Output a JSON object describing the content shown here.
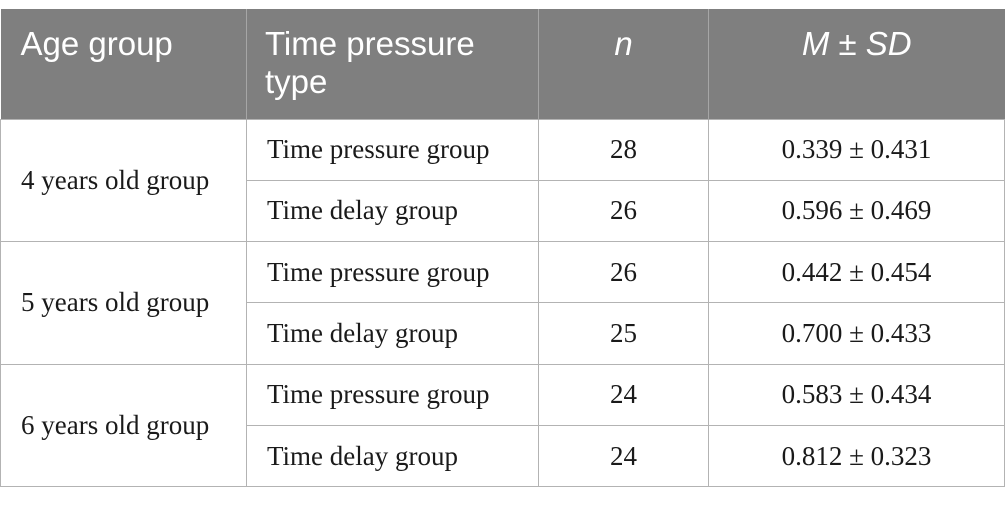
{
  "table": {
    "headers": [
      "Age group",
      "Time pressure type",
      "n",
      "M ± SD"
    ],
    "groups": [
      {
        "age_group": "4 years old group",
        "rows": [
          {
            "type": "Time pressure group",
            "n": "28",
            "m_sd": "0.339 ± 0.431"
          },
          {
            "type": "Time delay group",
            "n": "26",
            "m_sd": "0.596 ± 0.469"
          }
        ]
      },
      {
        "age_group": "5 years old group",
        "rows": [
          {
            "type": "Time pressure group",
            "n": "26",
            "m_sd": "0.442 ± 0.454"
          },
          {
            "type": "Time delay group",
            "n": "25",
            "m_sd": "0.700 ± 0.433"
          }
        ]
      },
      {
        "age_group": "6 years old group",
        "rows": [
          {
            "type": "Time pressure group",
            "n": "24",
            "m_sd": "0.583 ± 0.434"
          },
          {
            "type": "Time delay group",
            "n": "24",
            "m_sd": "0.812 ± 0.323"
          }
        ]
      }
    ]
  }
}
